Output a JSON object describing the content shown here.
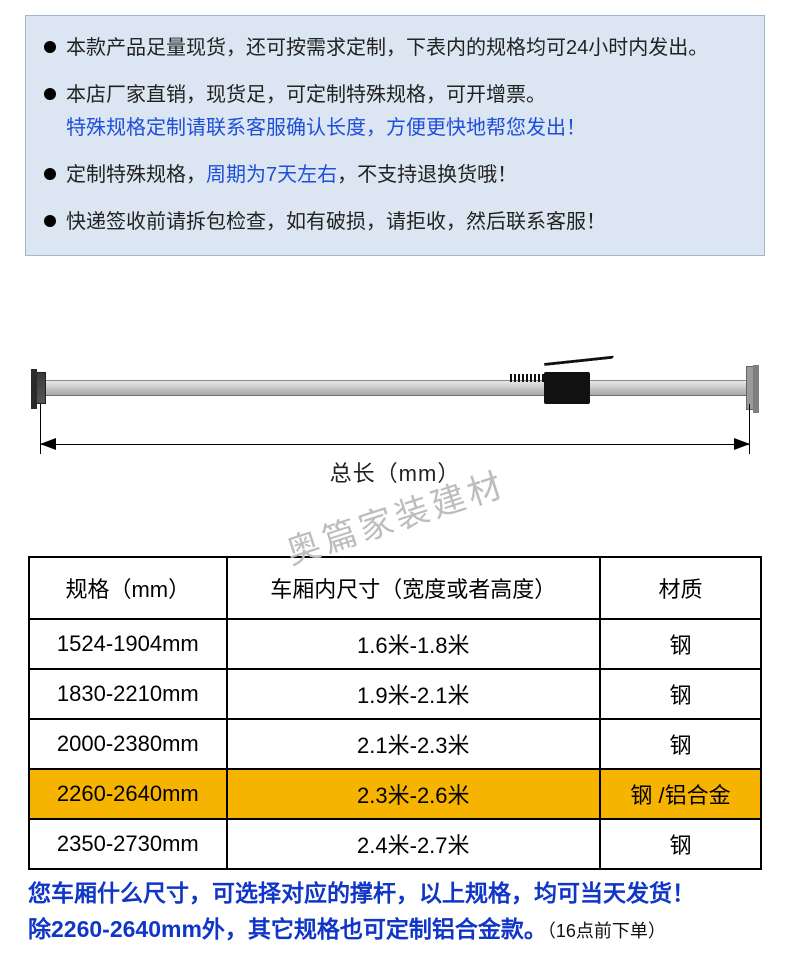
{
  "colors": {
    "notice_bg": "#dbe6f2",
    "notice_border": "#9fb7cf",
    "link_blue": "#1f4fd9",
    "note_blue": "#1036c8",
    "table_highlight": "#f6b400",
    "watermark": "#bdbdbd"
  },
  "notice": {
    "items": [
      {
        "text": "本款产品足量现货，还可按需求定制，下表内的规格均可24小时内发出。"
      },
      {
        "text": "本店厂家直销，现货足，可定制特殊规格，可开增票。",
        "sub": "特殊规格定制请联系客服确认长度，方便更快地帮您发出！"
      },
      {
        "text_before": "定制特殊规格，",
        "highlight": "周期为7天左右",
        "text_after": "，不支持退换货哦！"
      },
      {
        "text": "快递签收前请拆包检查，如有破损，请拒收，然后联系客服！"
      }
    ]
  },
  "diagram": {
    "dimension_label": "总长（mm）",
    "watermark": "奥篇家装建材"
  },
  "table": {
    "headers": [
      "规格（mm）",
      "车厢内尺寸（宽度或者高度）",
      "材质"
    ],
    "col_widths_pct": [
      27,
      51,
      22
    ],
    "rows": [
      {
        "spec": "1524-1904mm",
        "size": "1.6米-1.8米",
        "material": "钢",
        "highlight": false
      },
      {
        "spec": "1830-2210mm",
        "size": "1.9米-2.1米",
        "material": "钢",
        "highlight": false
      },
      {
        "spec": "2000-2380mm",
        "size": "2.1米-2.3米",
        "material": "钢",
        "highlight": false
      },
      {
        "spec": "2260-2640mm",
        "size": "2.3米-2.6米",
        "material": "钢 /铝合金",
        "highlight": true
      },
      {
        "spec": "2350-2730mm",
        "size": "2.4米-2.7米",
        "material": "钢",
        "highlight": false
      }
    ]
  },
  "footer": {
    "line1": "您车厢什么尺寸，可选择对应的撑杆，以上规格，均可当天发货！",
    "line2_main": "除2260-2640mm外，其它规格也可定制铝合金款。",
    "line2_paren": "（16点前下单）"
  }
}
